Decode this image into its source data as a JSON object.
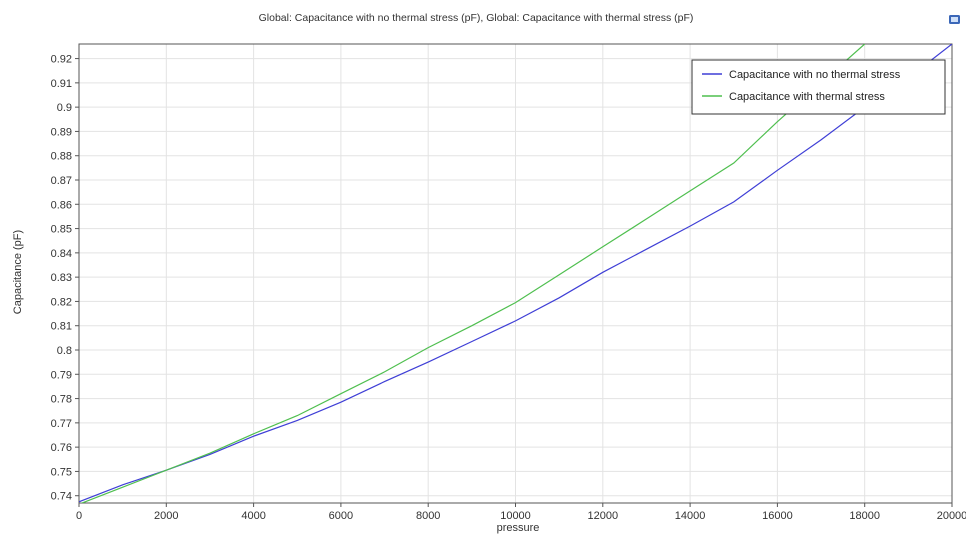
{
  "chart_data": {
    "type": "line",
    "title": "Global: Capacitance with no thermal stress (pF), Global: Capacitance with thermal stress (pF)",
    "xlabel": "pressure",
    "ylabel": "Capacitance (pF)",
    "xlim": [
      0,
      20000
    ],
    "ylim": [
      0.737,
      0.926
    ],
    "grid": true,
    "legend_position": "top-right",
    "x_ticks": [
      0,
      2000,
      4000,
      6000,
      8000,
      10000,
      12000,
      14000,
      16000,
      18000,
      20000
    ],
    "x_tick_labels": [
      "0",
      "2000",
      "4000",
      "6000",
      "8000",
      "10000",
      "12000",
      "14000",
      "16000",
      "18000",
      "20000"
    ],
    "y_ticks": [
      0.74,
      0.75,
      0.76,
      0.77,
      0.78,
      0.79,
      0.8,
      0.81,
      0.82,
      0.83,
      0.84,
      0.85,
      0.86,
      0.87,
      0.88,
      0.89,
      0.9,
      0.91,
      0.92
    ],
    "y_tick_labels": [
      "0.74",
      "0.75",
      "0.76",
      "0.77",
      "0.78",
      "0.79",
      "0.8",
      "0.81",
      "0.82",
      "0.83",
      "0.84",
      "0.85",
      "0.86",
      "0.87",
      "0.88",
      "0.89",
      "0.9",
      "0.91",
      "0.92"
    ],
    "x": [
      0,
      1000,
      2000,
      3000,
      4000,
      5000,
      6000,
      7000,
      8000,
      9000,
      10000,
      11000,
      12000,
      13000,
      14000,
      15000,
      16000,
      17000,
      18000,
      19000,
      20000
    ],
    "series": [
      {
        "name": "Capacitance with no thermal stress",
        "color": "#3f3fd6",
        "values": [
          0.7375,
          0.7445,
          0.7505,
          0.757,
          0.7645,
          0.771,
          0.7785,
          0.787,
          0.795,
          0.8035,
          0.812,
          0.8215,
          0.832,
          0.8415,
          0.851,
          0.861,
          0.874,
          0.8865,
          0.9,
          0.912,
          0.926
        ]
      },
      {
        "name": "Capacitance with thermal stress",
        "color": "#4fbf4f",
        "values": [
          0.7365,
          0.7435,
          0.7505,
          0.7575,
          0.7655,
          0.773,
          0.782,
          0.791,
          0.801,
          0.81,
          0.8195,
          0.831,
          0.8425,
          0.854,
          0.8655,
          0.877,
          0.894,
          0.91,
          0.926,
          null,
          null
        ]
      }
    ]
  },
  "toolbar": {
    "icon": "window-icon",
    "icon_color": "#3b67b8"
  }
}
